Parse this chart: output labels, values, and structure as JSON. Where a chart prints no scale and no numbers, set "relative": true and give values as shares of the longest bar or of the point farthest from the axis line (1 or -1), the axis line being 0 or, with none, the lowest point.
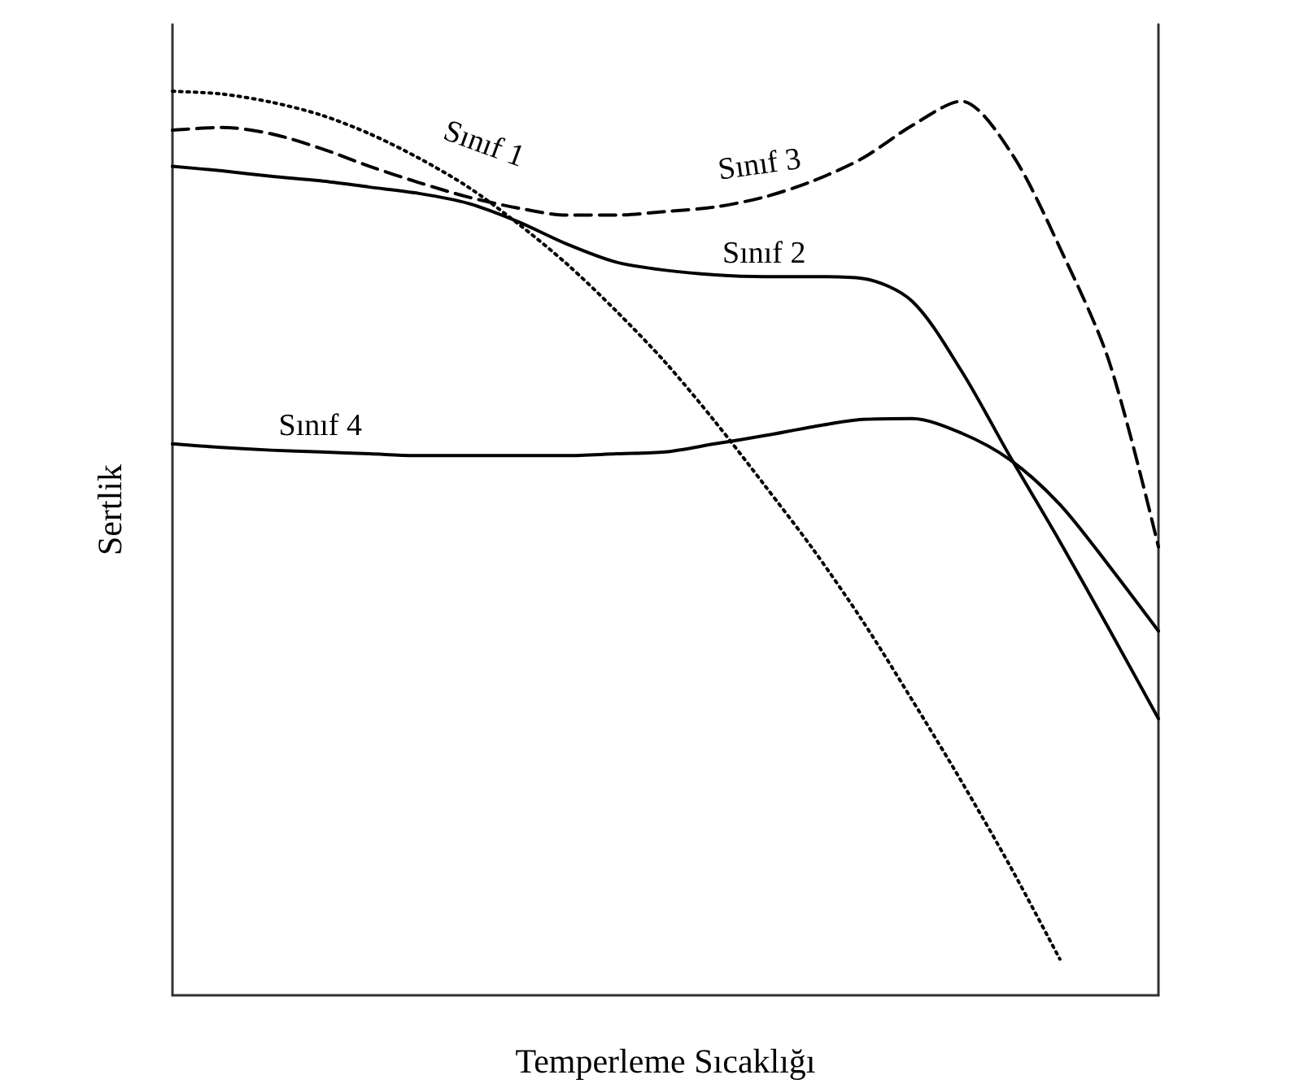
{
  "chart_data": {
    "type": "line",
    "relative": true,
    "xlabel": "Temperleme Sıcaklığı",
    "ylabel": "Sertlik",
    "categories": [
      null,
      null,
      null,
      null,
      null,
      null,
      null,
      null,
      null,
      null,
      null,
      null,
      null,
      null,
      null,
      null,
      null,
      null,
      null,
      null,
      null
    ],
    "series": [
      {
        "name": "Sınıf 1",
        "color": "#000000",
        "line_style": "dotted",
        "values": [
          1.0,
          0.997,
          0.988,
          0.974,
          0.953,
          0.926,
          0.894,
          0.854,
          0.809,
          0.757,
          0.7,
          0.635,
          0.565,
          0.493,
          0.414,
          0.327,
          0.237,
          0.142,
          0.04,
          null,
          null
        ]
      },
      {
        "name": "Sınıf 2",
        "color": "#000000",
        "line_style": "solid",
        "values": [
          0.917,
          0.912,
          0.906,
          0.901,
          0.894,
          0.887,
          0.876,
          0.856,
          0.831,
          0.811,
          0.802,
          0.797,
          0.795,
          0.795,
          0.793,
          0.768,
          0.691,
          0.595,
          0.502,
          0.405,
          0.306
        ]
      },
      {
        "name": "Sınıf 3",
        "color": "#000000",
        "line_style": "dashed",
        "values": [
          0.957,
          0.96,
          0.953,
          0.937,
          0.917,
          0.899,
          0.883,
          0.871,
          0.863,
          0.863,
          0.867,
          0.872,
          0.883,
          0.901,
          0.926,
          0.962,
          0.989,
          0.933,
          0.827,
          0.701,
          0.496
        ]
      },
      {
        "name": "Sınıf 4",
        "color": "#000000",
        "line_style": "solid",
        "values": [
          0.61,
          0.606,
          0.603,
          0.601,
          0.599,
          0.597,
          0.597,
          0.597,
          0.597,
          0.599,
          0.601,
          0.61,
          0.619,
          0.629,
          0.637,
          0.638,
          0.622,
          0.592,
          0.543,
          0.475,
          0.403
        ]
      }
    ],
    "marker": "none",
    "grid": false,
    "legend": false
  }
}
